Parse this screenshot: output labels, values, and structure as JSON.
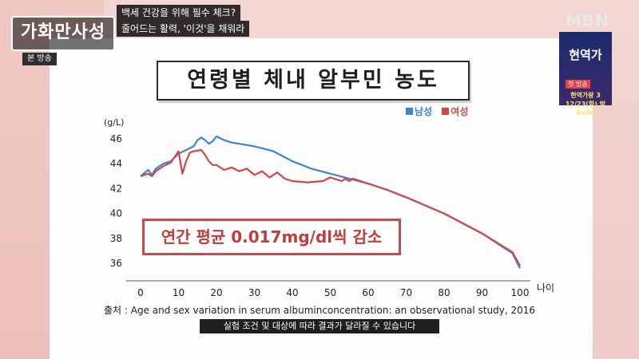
{
  "broadcast": {
    "show_logo": "가화만사성",
    "badge": "본 방송",
    "caption_top": "백세 건강을 위해 필수 체크?",
    "caption_bottom": "줄어드는 활력, '이것'을 채워라",
    "network": "MBN",
    "promo_title": "현역가",
    "promo_tag": "첫 방송",
    "promo_sub": "현역가왕 3 12/23(화) 밤 9시50"
  },
  "chart_data": {
    "type": "line",
    "title": "연령별 체내 알부민 농도",
    "ylabel": "(g/L)",
    "xlabel": "나이",
    "xlim": [
      -3,
      103
    ],
    "ylim": [
      35,
      47
    ],
    "x_ticks": [
      0,
      10,
      20,
      30,
      40,
      50,
      60,
      70,
      80,
      90,
      100
    ],
    "y_ticks": [
      36,
      38,
      40,
      42,
      44,
      46
    ],
    "legend_position": "top-right",
    "series": [
      {
        "name": "남성",
        "color": "#3b84d6",
        "x": [
          0,
          2,
          3,
          4,
          6,
          8,
          10,
          12,
          14,
          15,
          16,
          17,
          18,
          19,
          20,
          22,
          24,
          26,
          30,
          35,
          40,
          45,
          50,
          55,
          60,
          65,
          70,
          80,
          90,
          98,
          100
        ],
        "y": [
          43.0,
          43.5,
          43.1,
          43.6,
          44.0,
          44.2,
          44.8,
          45.1,
          45.4,
          45.9,
          46.1,
          45.9,
          45.6,
          45.8,
          46.2,
          45.9,
          45.7,
          45.6,
          45.4,
          45.0,
          44.2,
          43.6,
          43.2,
          42.8,
          42.4,
          41.9,
          41.3,
          40.0,
          38.4,
          36.8,
          35.6
        ]
      },
      {
        "name": "여성",
        "color": "#d64545",
        "x": [
          0,
          2,
          3,
          4,
          6,
          8,
          10,
          11,
          12,
          13,
          14,
          16,
          17,
          18,
          19,
          20,
          22,
          24,
          26,
          28,
          30,
          32,
          34,
          36,
          38,
          40,
          44,
          48,
          50,
          52,
          53,
          54,
          55,
          56,
          58,
          60,
          65,
          70,
          80,
          90,
          98,
          100
        ],
        "y": [
          43.0,
          43.2,
          43.0,
          43.4,
          43.8,
          44.1,
          45.0,
          43.2,
          44.2,
          44.9,
          45.0,
          45.1,
          44.7,
          44.2,
          43.9,
          43.9,
          43.5,
          43.7,
          43.4,
          43.6,
          43.1,
          43.4,
          42.9,
          43.3,
          42.8,
          42.6,
          42.5,
          42.6,
          42.9,
          42.7,
          42.6,
          42.8,
          42.6,
          42.8,
          42.6,
          42.4,
          41.9,
          41.3,
          40.0,
          38.4,
          36.9,
          35.8
        ]
      }
    ],
    "annotation": "연간 평균 0.017mg/dl씩 감소",
    "source": "출처 : Age and sex variation in serum albuminconcentration: an observational study, 2016",
    "notice": "실험 조건 및 대상에 따라 결과가 달라질 수 있습니다"
  }
}
